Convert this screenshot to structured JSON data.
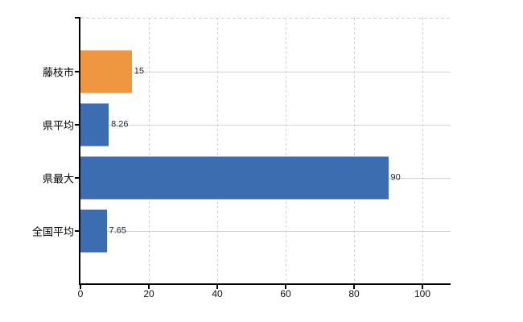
{
  "chart_data": {
    "type": "bar",
    "orientation": "horizontal",
    "title": "",
    "xlabel": "",
    "ylabel": "",
    "categories": [
      "藤枝市",
      "県平均",
      "県最大",
      "全国平均"
    ],
    "values": [
      15,
      8.26,
      90,
      7.65
    ],
    "value_labels": [
      "15",
      "8.26",
      "90",
      "7.65"
    ],
    "bar_colors": [
      "#ee9640",
      "#3c6db0",
      "#3c6db0",
      "#3c6db0"
    ],
    "x_ticks": [
      "0",
      "20",
      "40",
      "60",
      "80",
      "100"
    ],
    "x_tick_values": [
      0,
      20,
      40,
      60,
      80,
      100
    ],
    "xlim": [
      0,
      108
    ],
    "legend_position": "none",
    "grid": {
      "vertical": "dashed",
      "horizontal": "solid lines at category centers",
      "top_border": "dashed"
    }
  },
  "colors": {
    "background": "#ffffff",
    "axis": "#000000",
    "grid_vertical": "#d6ced6",
    "grid_horizontal": "#ccd6cc",
    "top_border": "#d0ccd0",
    "value_label": "#1c2833",
    "tick_label": "#111111",
    "category_label": "#000000",
    "bar_orange": "#ee9640",
    "bar_blue": "#3c6db0"
  }
}
